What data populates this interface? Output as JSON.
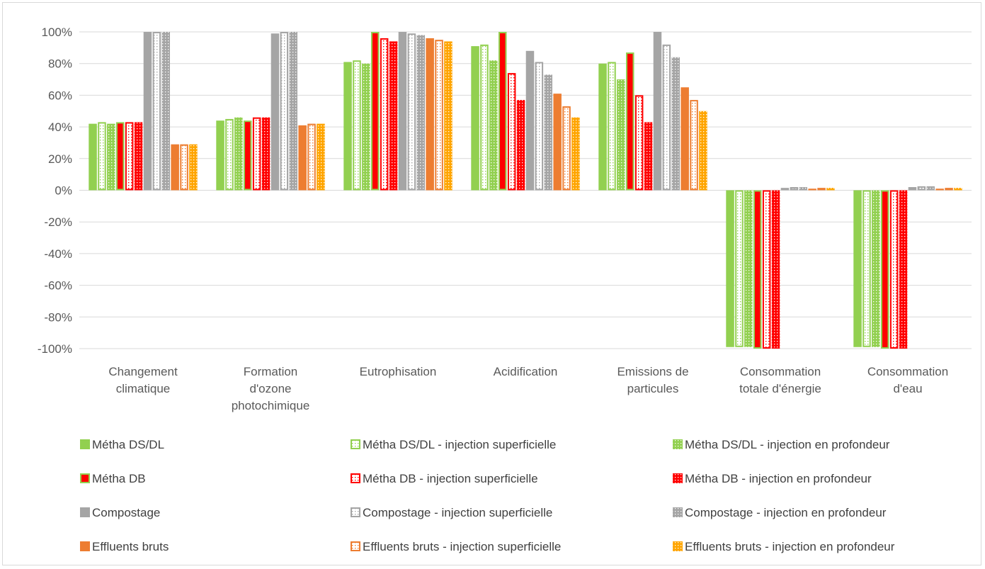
{
  "chart_data": {
    "type": "bar",
    "title": "",
    "xlabel": "",
    "ylabel": "",
    "ylim": [
      -1.0,
      1.0
    ],
    "yticks": [
      1.0,
      0.8,
      0.6,
      0.4,
      0.2,
      0.0,
      -0.2,
      -0.4,
      -0.6,
      -0.8,
      -1.0
    ],
    "ytick_labels": [
      "100%",
      "80%",
      "60%",
      "40%",
      "20%",
      "0%",
      "-20%",
      "-40%",
      "-60%",
      "-80%",
      "-100%"
    ],
    "grid": "horizontal",
    "legend_position": "bottom",
    "categories": [
      [
        "Changement",
        "climatique"
      ],
      [
        "Formation",
        "d'ozone",
        "photochimique"
      ],
      [
        "Eutrophisation"
      ],
      [
        "Acidification"
      ],
      [
        "Emissions de",
        "particules"
      ],
      [
        "Consommation",
        "totale d'énergie"
      ],
      [
        "Consommation",
        "d'eau"
      ]
    ],
    "series": [
      {
        "name": "Métha DS/DL",
        "color": "#92d050",
        "pattern": "solid",
        "values": [
          0.42,
          0.44,
          0.81,
          0.91,
          0.8,
          -0.99,
          -0.99
        ]
      },
      {
        "name": "Métha DS/DL - injection superficielle",
        "color": "#92d050",
        "pattern": "outline",
        "values": [
          0.43,
          0.45,
          0.82,
          0.92,
          0.81,
          -0.99,
          -0.99
        ]
      },
      {
        "name": "Métha DS/DL - injection en profondeur",
        "color": "#92d050",
        "pattern": "dots",
        "values": [
          0.42,
          0.46,
          0.8,
          0.82,
          0.7,
          -0.99,
          -0.99
        ]
      },
      {
        "name": "Métha DB",
        "color": "#ff0000",
        "pattern": "solid-green-border",
        "values": [
          0.43,
          0.44,
          1.0,
          1.0,
          0.87,
          -1.0,
          -1.0
        ]
      },
      {
        "name": "Métha DB - injection superficielle",
        "color": "#ff0000",
        "pattern": "outline",
        "values": [
          0.43,
          0.46,
          0.96,
          0.74,
          0.6,
          -1.0,
          -1.0
        ]
      },
      {
        "name": "Métha DB - injection en profondeur",
        "color": "#ff0000",
        "pattern": "dots",
        "values": [
          0.43,
          0.46,
          0.94,
          0.57,
          0.43,
          -1.0,
          -1.0
        ]
      },
      {
        "name": "Compostage",
        "color": "#a5a5a5",
        "pattern": "solid",
        "values": [
          1.0,
          0.99,
          1.0,
          0.88,
          1.0,
          0.015,
          0.02
        ]
      },
      {
        "name": "Compostage - injection superficielle",
        "color": "#a5a5a5",
        "pattern": "outline",
        "values": [
          1.0,
          1.0,
          0.99,
          0.81,
          0.92,
          0.02,
          0.025
        ]
      },
      {
        "name": "Compostage - injection en profondeur",
        "color": "#a5a5a5",
        "pattern": "dots",
        "values": [
          1.0,
          1.0,
          0.98,
          0.73,
          0.84,
          0.02,
          0.025
        ]
      },
      {
        "name": "Effluents bruts",
        "color": "#ed7d31",
        "pattern": "solid",
        "values": [
          0.29,
          0.41,
          0.96,
          0.61,
          0.65,
          0.01,
          0.01
        ]
      },
      {
        "name": "Effluents bruts  - injection superficielle",
        "color": "#ed7d31",
        "pattern": "outline",
        "values": [
          0.29,
          0.42,
          0.95,
          0.53,
          0.57,
          0.015,
          0.015
        ]
      },
      {
        "name": "Effluents bruts  - injection en profondeur",
        "color": "#ffa500",
        "pattern": "dots",
        "values": [
          0.29,
          0.42,
          0.94,
          0.46,
          0.5,
          0.015,
          0.015
        ]
      }
    ]
  }
}
